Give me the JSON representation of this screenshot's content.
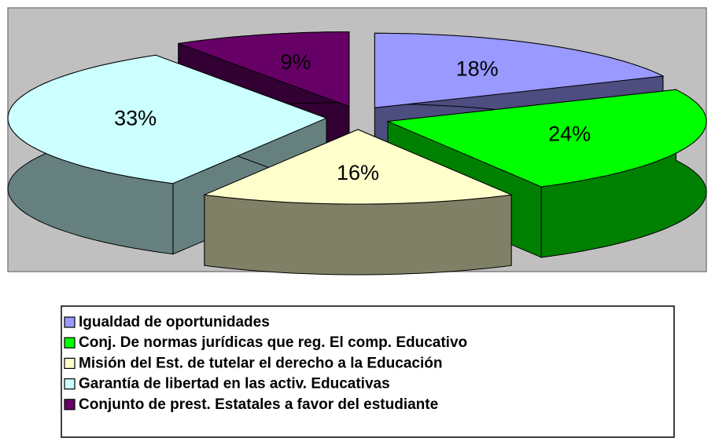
{
  "chart_data": {
    "type": "pie",
    "categories": [
      "Igualdad de oportunidades",
      "Conj. De normas jurídicas que reg. El comp. Educativo",
      "Misión del Est. de tutelar el derecho a la Educación",
      "Garantía de libertad en las activ. Educativas",
      "Conjunto de prest. Estatales a favor del estudiante"
    ],
    "values": [
      18,
      24,
      16,
      33,
      9
    ],
    "value_labels": [
      "18%",
      "24%",
      "16%",
      "33%",
      "9%"
    ],
    "colors": [
      "#9999ff",
      "#00ff00",
      "#ffffcc",
      "#ccffff",
      "#660066"
    ],
    "legend": "bottom"
  }
}
